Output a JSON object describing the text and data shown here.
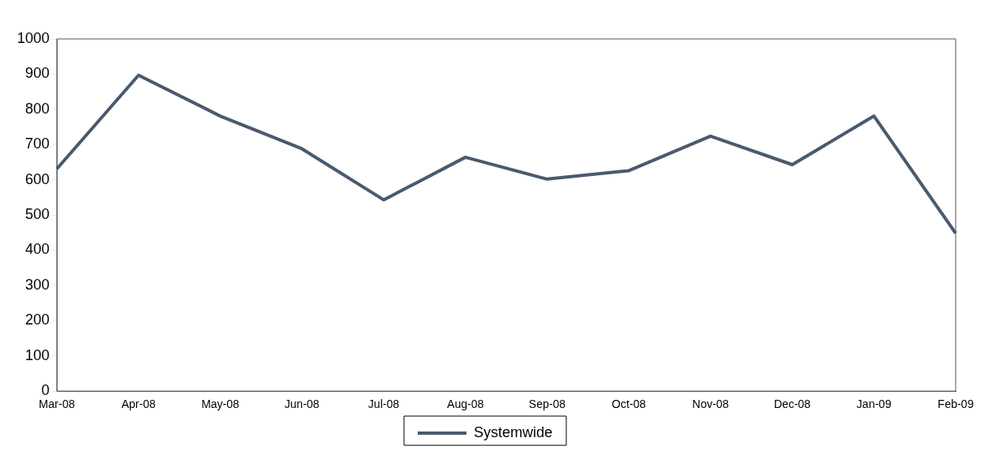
{
  "chart_data": {
    "type": "line",
    "categories": [
      "Mar-08",
      "Apr-08",
      "May-08",
      "Jun-08",
      "Jul-08",
      "Aug-08",
      "Sep-08",
      "Oct-08",
      "Nov-08",
      "Dec-08",
      "Jan-09",
      "Feb-09"
    ],
    "series": [
      {
        "name": "Systemwide",
        "color": "#4a5a6e",
        "values": [
          631,
          897,
          781,
          688,
          543,
          664,
          602,
          626,
          724,
          643,
          781,
          448
        ]
      }
    ],
    "ylim": [
      0,
      1000
    ],
    "yticks": [
      0,
      100,
      200,
      300,
      400,
      500,
      600,
      700,
      800,
      900,
      1000
    ],
    "grid": false,
    "legend": "bottom"
  }
}
